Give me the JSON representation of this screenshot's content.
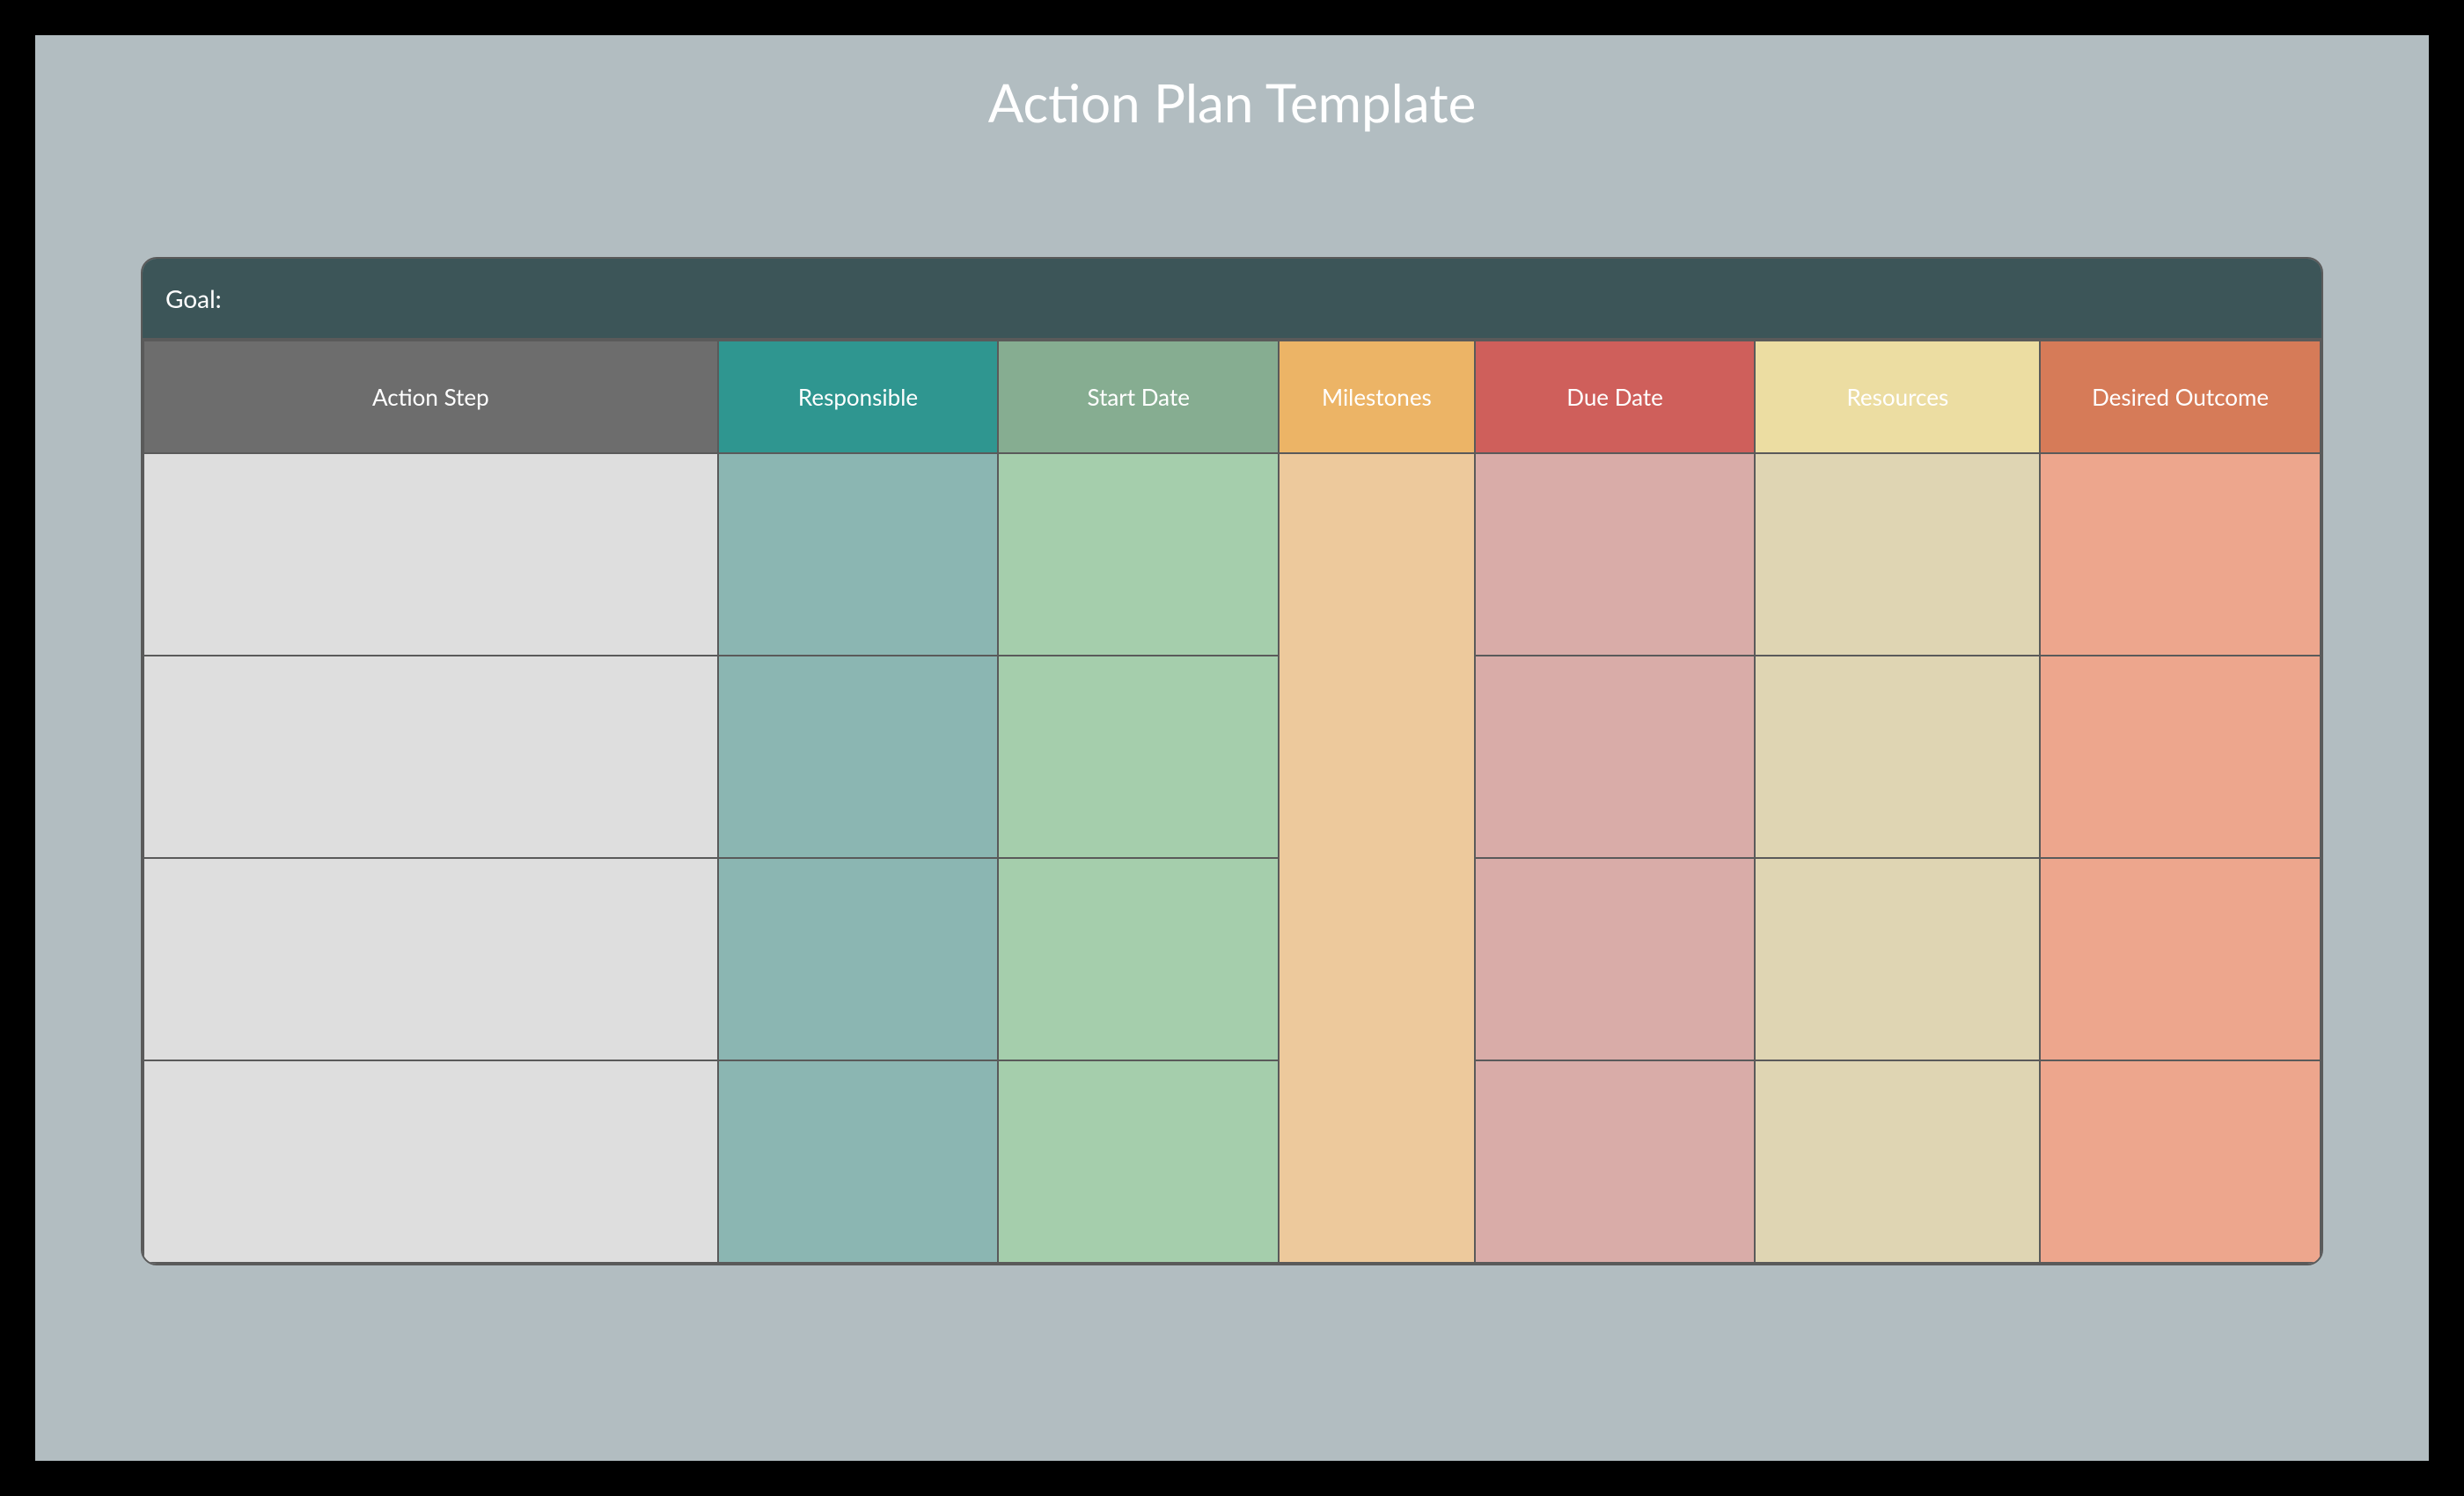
{
  "title": "Action Plan Template",
  "goal_label": "Goal:",
  "columns": [
    {
      "label": "Action Step",
      "header_bg": "#6d6d6d",
      "cell_bg": "#dedede",
      "width_class": "col-0"
    },
    {
      "label": "Responsible",
      "header_bg": "#2f9690",
      "cell_bg": "#8bb6b2",
      "width_class": "col-1"
    },
    {
      "label": "Start Date",
      "header_bg": "#86ad91",
      "cell_bg": "#a5ceac",
      "width_class": "col-2"
    },
    {
      "label": "Milestones",
      "header_bg": "#ecb466",
      "cell_bg": "#edc99c",
      "width_class": "col-3",
      "merged": true
    },
    {
      "label": "Due Date",
      "header_bg": "#cf5f5b",
      "cell_bg": "#d9aca8",
      "width_class": "col-4"
    },
    {
      "label": "Resources",
      "header_bg": "#ecdda2",
      "cell_bg": "#dfd5b3",
      "width_class": "col-5"
    },
    {
      "label": "Desired Outcome",
      "header_bg": "#d67b58",
      "cell_bg": "#eda68d",
      "width_class": "col-6"
    }
  ],
  "row_count": 4,
  "canvas_bg": "#b2bdc1",
  "frame_bg": "#000000",
  "goal_bg": "#3c5558",
  "border_color": "#5a5a5a",
  "title_color": "#ffffff",
  "header_text_color": "#ffffff",
  "title_fontsize": 60,
  "header_fontsize": 26,
  "goal_fontsize": 28
}
